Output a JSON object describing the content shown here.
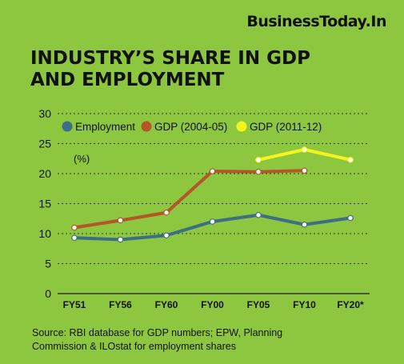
{
  "brand": "BusinessToday.In",
  "title_lines": [
    "INDUSTRY’S SHARE IN GDP",
    "AND EMPLOYMENT"
  ],
  "source_lines": [
    "Source: RBI database for GDP numbers; EPW, Planning",
    "Commission & ILOstat for employment shares"
  ],
  "colors": {
    "background": "#8dc63f",
    "employment": "#3d6e86",
    "gdp_2004": "#b5562a",
    "gdp_2011": "#f5f51e",
    "grid": "#333333",
    "text": "#111111"
  },
  "chart_data": {
    "type": "line",
    "unit_label": "(%)",
    "categories": [
      "FY51",
      "FY56",
      "FY60",
      "FY00",
      "FY05",
      "FY10",
      "FY20*"
    ],
    "ylim": [
      0,
      30
    ],
    "yticks": [
      0,
      5,
      10,
      15,
      20,
      25,
      30
    ],
    "grid": "dashed horizontal",
    "legend_position": "top",
    "series": [
      {
        "name": "Employment",
        "values": [
          9.3,
          9.0,
          9.7,
          12.0,
          13.1,
          11.5,
          12.6
        ]
      },
      {
        "name": "GDP (2004-05)",
        "values": [
          11.0,
          12.2,
          13.5,
          20.4,
          20.3,
          20.5,
          null
        ]
      },
      {
        "name": "GDP (2011-12)",
        "values": [
          null,
          null,
          null,
          null,
          22.3,
          24.0,
          22.3
        ]
      }
    ]
  }
}
